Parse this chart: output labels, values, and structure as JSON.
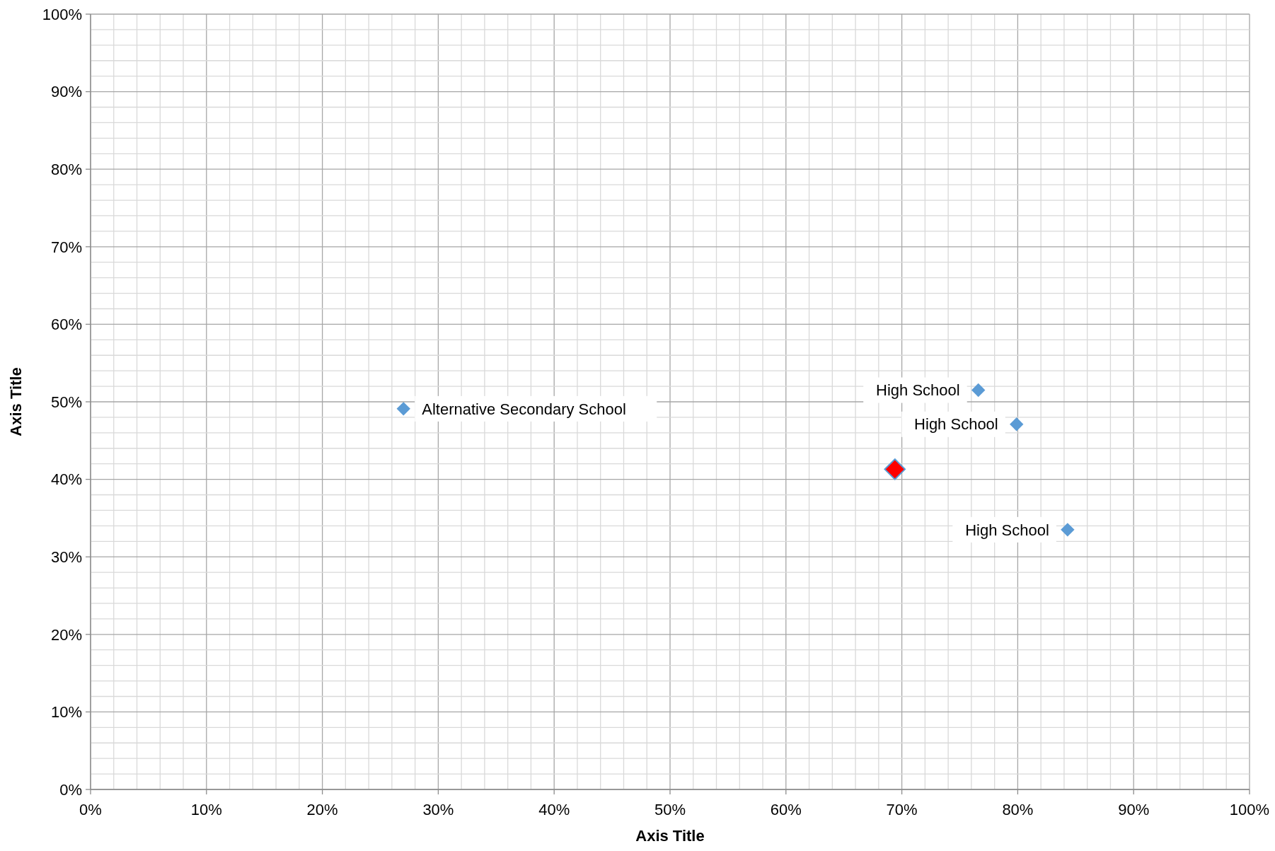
{
  "chart_data": {
    "type": "scatter",
    "xlabel": "Axis Title",
    "ylabel": "Axis Title",
    "xlim": [
      0,
      100
    ],
    "ylim": [
      0,
      100
    ],
    "xticks": [
      {
        "value": 0,
        "label": "0%"
      },
      {
        "value": 2,
        "label": null
      },
      {
        "value": 4,
        "label": null
      },
      {
        "value": 6,
        "label": null
      },
      {
        "value": 8,
        "label": null
      },
      {
        "value": 10,
        "label": "10%"
      },
      {
        "value": 12,
        "label": null
      },
      {
        "value": 14,
        "label": null
      },
      {
        "value": 16,
        "label": null
      },
      {
        "value": 18,
        "label": null
      },
      {
        "value": 20,
        "label": "20%"
      },
      {
        "value": 22,
        "label": null
      },
      {
        "value": 24,
        "label": null
      },
      {
        "value": 26,
        "label": null
      },
      {
        "value": 28,
        "label": null
      },
      {
        "value": 30,
        "label": "30%"
      },
      {
        "value": 32,
        "label": null
      },
      {
        "value": 34,
        "label": null
      },
      {
        "value": 36,
        "label": null
      },
      {
        "value": 38,
        "label": null
      },
      {
        "value": 40,
        "label": "40%"
      },
      {
        "value": 42,
        "label": null
      },
      {
        "value": 44,
        "label": null
      },
      {
        "value": 46,
        "label": null
      },
      {
        "value": 48,
        "label": null
      },
      {
        "value": 50,
        "label": "50%"
      },
      {
        "value": 52,
        "label": null
      },
      {
        "value": 54,
        "label": null
      },
      {
        "value": 56,
        "label": null
      },
      {
        "value": 58,
        "label": null
      },
      {
        "value": 60,
        "label": "60%"
      },
      {
        "value": 62,
        "label": null
      },
      {
        "value": 64,
        "label": null
      },
      {
        "value": 66,
        "label": null
      },
      {
        "value": 68,
        "label": null
      },
      {
        "value": 70,
        "label": "70%"
      },
      {
        "value": 72,
        "label": null
      },
      {
        "value": 74,
        "label": null
      },
      {
        "value": 76,
        "label": null
      },
      {
        "value": 78,
        "label": null
      },
      {
        "value": 80,
        "label": "80%"
      },
      {
        "value": 82,
        "label": null
      },
      {
        "value": 84,
        "label": null
      },
      {
        "value": 86,
        "label": null
      },
      {
        "value": 88,
        "label": null
      },
      {
        "value": 90,
        "label": "90%"
      },
      {
        "value": 92,
        "label": null
      },
      {
        "value": 94,
        "label": null
      },
      {
        "value": 96,
        "label": null
      },
      {
        "value": 98,
        "label": null
      },
      {
        "value": 100,
        "label": "100%"
      }
    ],
    "yticks": [
      {
        "value": 0,
        "label": "0%"
      },
      {
        "value": 2,
        "label": null
      },
      {
        "value": 4,
        "label": null
      },
      {
        "value": 6,
        "label": null
      },
      {
        "value": 8,
        "label": null
      },
      {
        "value": 10,
        "label": "10%"
      },
      {
        "value": 12,
        "label": null
      },
      {
        "value": 14,
        "label": null
      },
      {
        "value": 16,
        "label": null
      },
      {
        "value": 18,
        "label": null
      },
      {
        "value": 20,
        "label": "20%"
      },
      {
        "value": 22,
        "label": null
      },
      {
        "value": 24,
        "label": null
      },
      {
        "value": 26,
        "label": null
      },
      {
        "value": 28,
        "label": null
      },
      {
        "value": 30,
        "label": "30%"
      },
      {
        "value": 32,
        "label": null
      },
      {
        "value": 34,
        "label": null
      },
      {
        "value": 36,
        "label": null
      },
      {
        "value": 38,
        "label": null
      },
      {
        "value": 40,
        "label": "40%"
      },
      {
        "value": 42,
        "label": null
      },
      {
        "value": 44,
        "label": null
      },
      {
        "value": 46,
        "label": null
      },
      {
        "value": 48,
        "label": null
      },
      {
        "value": 50,
        "label": "50%"
      },
      {
        "value": 52,
        "label": null
      },
      {
        "value": 54,
        "label": null
      },
      {
        "value": 56,
        "label": null
      },
      {
        "value": 58,
        "label": null
      },
      {
        "value": 60,
        "label": "60%"
      },
      {
        "value": 62,
        "label": null
      },
      {
        "value": 64,
        "label": null
      },
      {
        "value": 66,
        "label": null
      },
      {
        "value": 68,
        "label": null
      },
      {
        "value": 70,
        "label": "70%"
      },
      {
        "value": 72,
        "label": null
      },
      {
        "value": 74,
        "label": null
      },
      {
        "value": 76,
        "label": null
      },
      {
        "value": 78,
        "label": null
      },
      {
        "value": 80,
        "label": "80%"
      },
      {
        "value": 82,
        "label": null
      },
      {
        "value": 84,
        "label": null
      },
      {
        "value": 86,
        "label": null
      },
      {
        "value": 88,
        "label": null
      },
      {
        "value": 90,
        "label": "90%"
      },
      {
        "value": 92,
        "label": null
      },
      {
        "value": 94,
        "label": null
      },
      {
        "value": 96,
        "label": null
      },
      {
        "value": 98,
        "label": null
      },
      {
        "value": 100,
        "label": "100%"
      }
    ],
    "grid": true,
    "marker": "diamond",
    "series": [
      {
        "color": "#5b9bd5",
        "x": [
          27.0,
          76.6,
          79.9,
          84.3
        ],
        "values": [
          49.1,
          51.5,
          47.1,
          33.5
        ],
        "value_labels": [
          "Alternative Secondary School",
          "High School",
          "High School",
          "High School"
        ]
      },
      {
        "color": "#ff0000",
        "x": [
          69.4
        ],
        "values": [
          41.3
        ]
      }
    ]
  }
}
